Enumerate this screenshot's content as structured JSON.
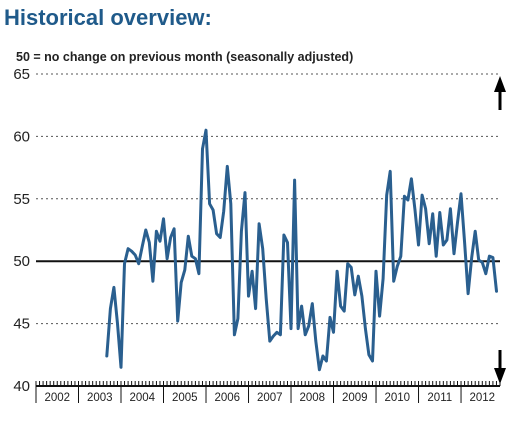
{
  "chart_data": {
    "type": "line",
    "title": "Historical overview:",
    "subtitle": "50 = no change on previous month (seasonally adjusted)",
    "xlabel": "",
    "ylabel": "",
    "ylim": [
      40,
      65
    ],
    "xlim": [
      2002,
      2012.9167
    ],
    "yticks": [
      40,
      45,
      50,
      55,
      60,
      65
    ],
    "xticks": [
      "2002",
      "2003",
      "2004",
      "2005",
      "2006",
      "2007",
      "2008",
      "2009",
      "2010",
      "2011",
      "2012"
    ],
    "reference_line": 50,
    "grid": "horizontal dotted",
    "series_color": "#2a5f8f",
    "arrows": {
      "up": "top-right",
      "down": "bottom-right"
    },
    "series": [
      {
        "x_start": "2003-09",
        "frequency": "monthly",
        "values": [
          42.4,
          46.2,
          47.9,
          45.0,
          41.5,
          49.8,
          51.0,
          50.8,
          50.5,
          49.8,
          51.2,
          52.5,
          51.5,
          48.4,
          52.4,
          51.6,
          53.4,
          50.2,
          51.9,
          52.6,
          45.2,
          48.3,
          49.3,
          52.0,
          50.4,
          50.2,
          49.0,
          59.0,
          60.5,
          54.6,
          54.1,
          52.2,
          51.9,
          54.0,
          57.6,
          54.6,
          44.1,
          45.4,
          52.4,
          55.5,
          47.2,
          49.2,
          46.2,
          53.0,
          51.0,
          47.0,
          43.6,
          44.0,
          44.3,
          44.1,
          52.1,
          51.5,
          44.6,
          56.5,
          44.6,
          46.4,
          44.1,
          44.8,
          46.6,
          43.6,
          41.3,
          42.4,
          42.0,
          45.5,
          44.3,
          49.2,
          46.4,
          46.0,
          49.8,
          49.5,
          47.3,
          48.8,
          47.2,
          44.6,
          42.5,
          42.0,
          49.2,
          45.6,
          48.6,
          55.3,
          57.2,
          48.4,
          49.6,
          50.4,
          55.2,
          54.9,
          56.6,
          54.1,
          51.3,
          55.3,
          54.2,
          51.4,
          53.8,
          50.4,
          53.9,
          51.3,
          51.7,
          54.2,
          50.6,
          53.1,
          55.4,
          51.5,
          47.4,
          50.3,
          52.4,
          50.1,
          49.9,
          49.0,
          50.4,
          50.3,
          47.6
        ]
      }
    ]
  }
}
